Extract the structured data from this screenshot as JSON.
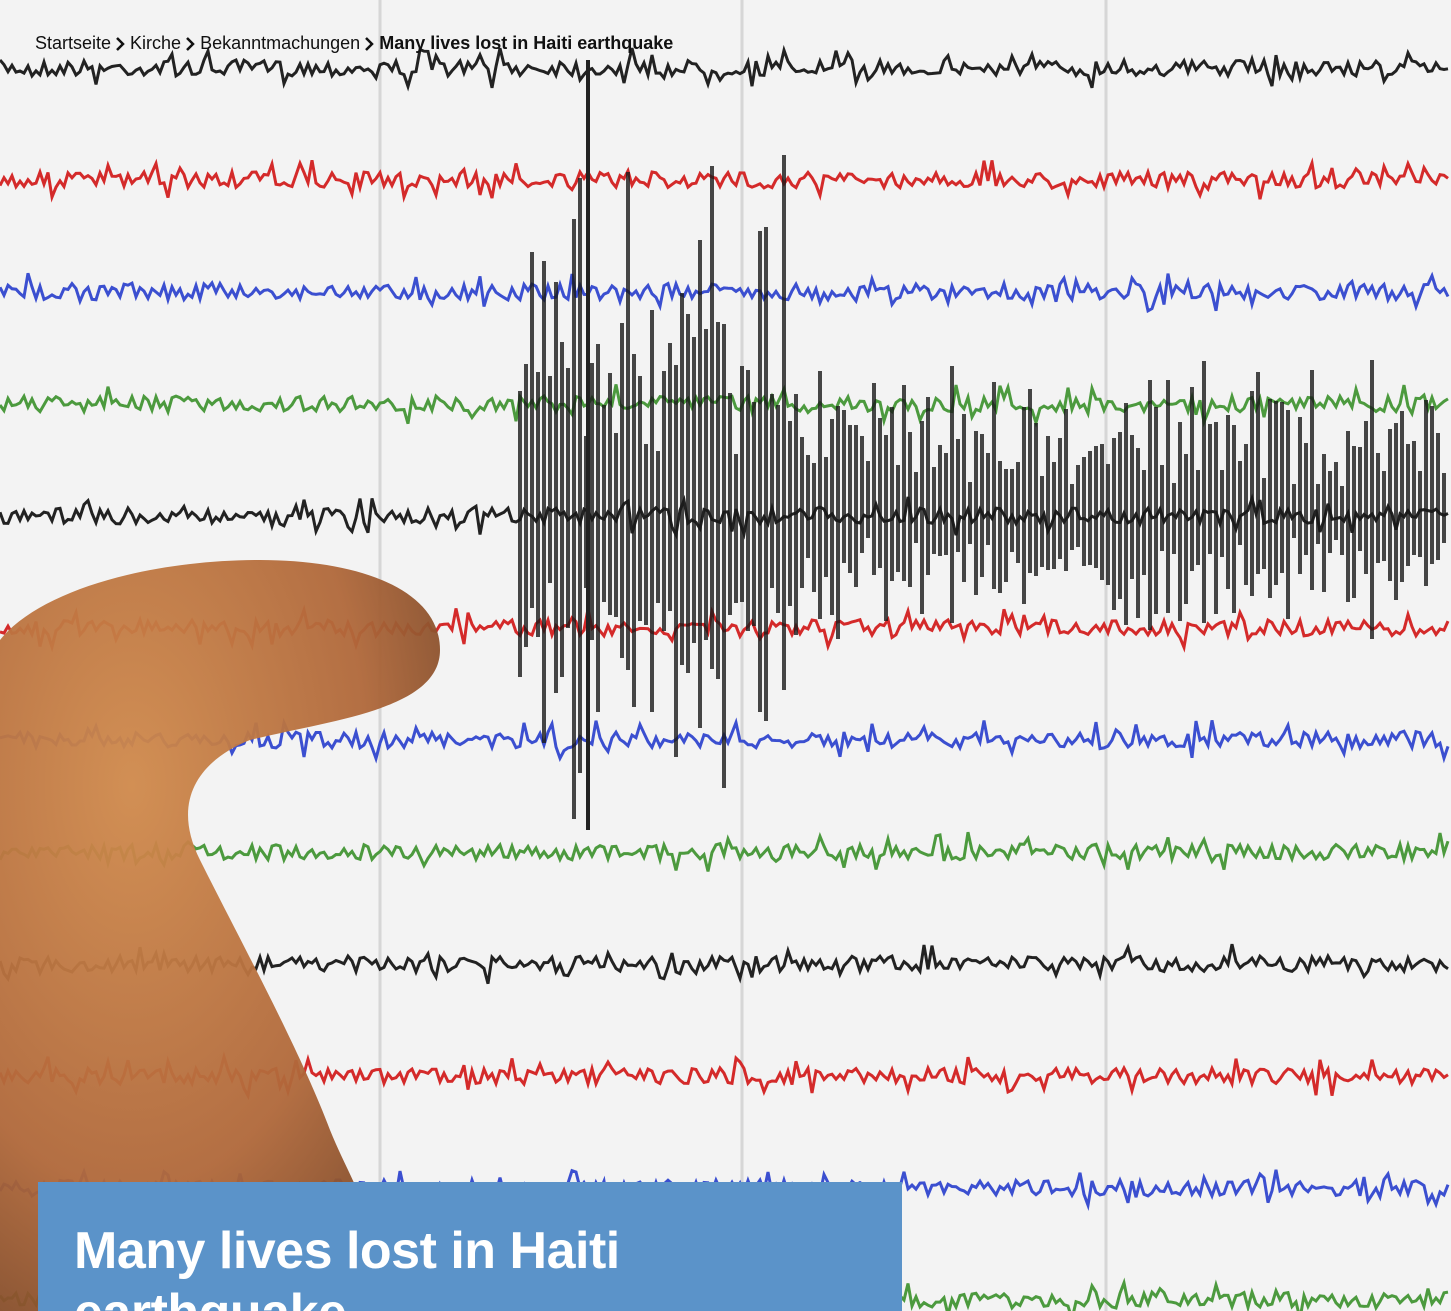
{
  "breadcrumb": {
    "items": [
      "Startseite",
      "Kirche",
      "Bekanntmachungen"
    ],
    "current": "Many lives lost in Haiti earthquake"
  },
  "hero": {
    "title": "Many lives lost in Haiti earthquake"
  }
}
